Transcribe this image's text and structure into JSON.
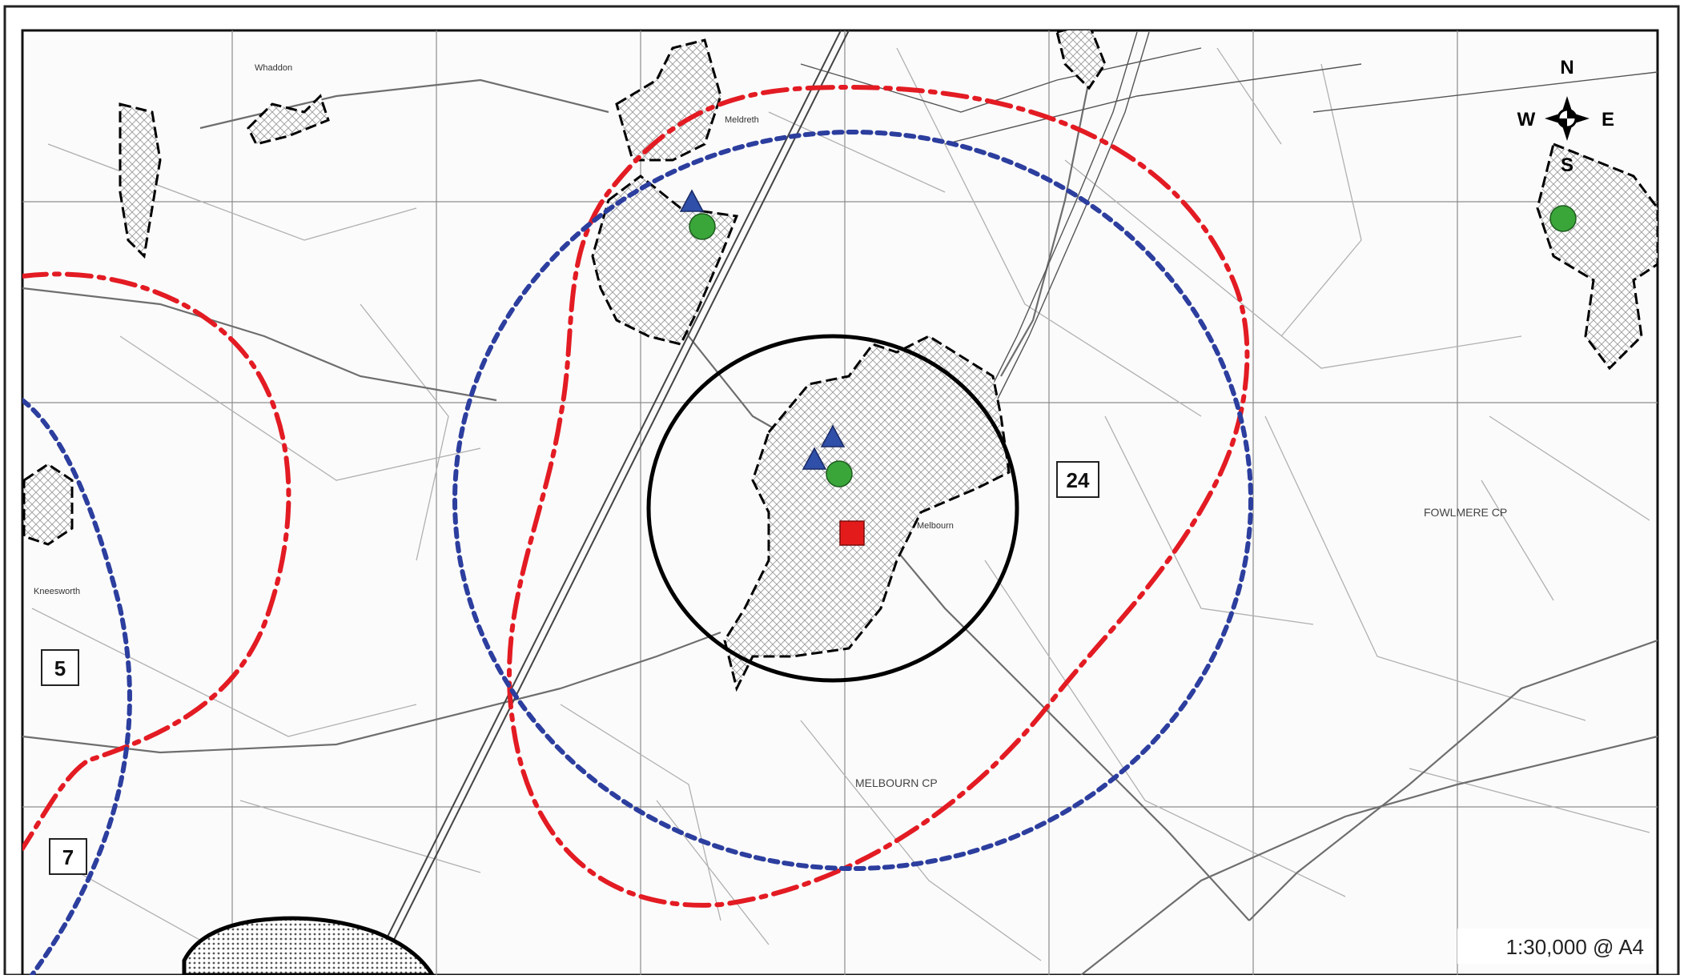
{
  "map": {
    "scale_text": "1:30,000 @ A4",
    "compass": {
      "north": "N",
      "south": "S",
      "east": "E",
      "west": "W"
    },
    "area_numbers": [
      "24",
      "5",
      "7"
    ],
    "parish_labels": [
      "FOWLMERE CP",
      "MELBOURN CP"
    ],
    "settlement_labels": [
      "Whaddon",
      "Meldreth",
      "Melbourn",
      "Kneesworth"
    ],
    "colors": {
      "red_dashdot": "#e31b23",
      "blue_dotted": "#2c3e9e",
      "black_circle": "#000000",
      "triangle": "#2f4fa8",
      "circle_marker": "#3aa63a",
      "square_marker": "#e41b1b"
    },
    "markers": {
      "triangles": 3,
      "green_circles": 3,
      "red_squares": 1
    }
  }
}
